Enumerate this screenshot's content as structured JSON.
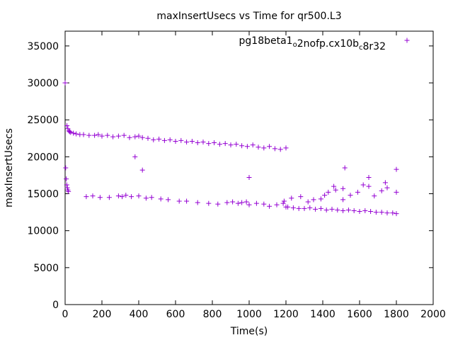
{
  "chart_data": {
    "type": "scatter",
    "title": "maxInsertUsecs vs Time for qr500.L3",
    "xlabel": "Time(s)",
    "ylabel": "maxInsertUsecs",
    "xlim": [
      0,
      2000
    ],
    "ylim": [
      0,
      37000
    ],
    "xticks": [
      "0",
      "200",
      "400",
      "600",
      "800",
      "1000",
      "1200",
      "1400",
      "1600",
      "1800",
      "2000"
    ],
    "yticks": [
      "0",
      "5000",
      "10000",
      "15000",
      "20000",
      "25000",
      "30000",
      "35000"
    ],
    "legend_position": "top-right",
    "grid": false,
    "marker": "+",
    "series": [
      {
        "name_parts": [
          {
            "text": "pg18beta1",
            "sub": false
          },
          {
            "text": "o",
            "sub": true
          },
          {
            "text": "2nofp.cx10b",
            "sub": false
          },
          {
            "text": "c",
            "sub": true
          },
          {
            "text": "8r32",
            "sub": false
          }
        ],
        "color": "#9400d3",
        "x": [
          0,
          10,
          15,
          20,
          25,
          30,
          45,
          60,
          80,
          100,
          130,
          160,
          180,
          200,
          230,
          260,
          290,
          320,
          350,
          380,
          400,
          420,
          450,
          480,
          510,
          540,
          570,
          600,
          630,
          660,
          690,
          720,
          750,
          780,
          810,
          840,
          870,
          900,
          930,
          960,
          990,
          1020,
          1050,
          1080,
          1110,
          1140,
          1170,
          1200,
          3,
          6,
          9,
          12,
          15,
          18,
          115,
          150,
          190,
          240,
          290,
          330,
          360,
          400,
          440,
          470,
          520,
          560,
          620,
          660,
          720,
          780,
          830,
          880,
          910,
          940,
          960,
          985,
          1000,
          1040,
          1080,
          1110,
          1150,
          1185,
          1200,
          1210,
          1240,
          1270,
          1300,
          1330,
          1360,
          1390,
          1420,
          1450,
          1480,
          1510,
          1540,
          1570,
          1600,
          1630,
          1660,
          1690,
          1720,
          1750,
          1780,
          1800,
          1190,
          1230,
          1280,
          1320,
          1350,
          1390,
          1430,
          1460,
          1510,
          1550,
          1590,
          1620,
          1650,
          1680,
          1720,
          1750,
          1800,
          1520,
          1650,
          1740,
          1800,
          1510,
          1470,
          1410,
          1000,
          380,
          420,
          310
        ],
        "y": [
          30000,
          24200,
          23800,
          23500,
          23400,
          23300,
          23200,
          23100,
          23000,
          23000,
          22900,
          22900,
          23000,
          22800,
          22900,
          22700,
          22800,
          22900,
          22600,
          22700,
          22800,
          22600,
          22500,
          22300,
          22400,
          22200,
          22300,
          22100,
          22200,
          22000,
          22100,
          21900,
          22000,
          21800,
          21900,
          21700,
          21800,
          21600,
          21700,
          21500,
          21400,
          21600,
          21300,
          21200,
          21400,
          21100,
          21000,
          21200,
          18500,
          17000,
          16200,
          15800,
          15500,
          15300,
          14600,
          14700,
          14500,
          14500,
          14700,
          14800,
          14600,
          14700,
          14400,
          14500,
          14300,
          14200,
          14000,
          14000,
          13800,
          13700,
          13600,
          13800,
          13900,
          13700,
          13800,
          13900,
          13500,
          13700,
          13600,
          13300,
          13500,
          13700,
          13200,
          13200,
          13100,
          13000,
          13000,
          13100,
          12900,
          13000,
          12800,
          12900,
          12800,
          12700,
          12800,
          12700,
          12600,
          12700,
          12600,
          12500,
          12500,
          12400,
          12400,
          12300,
          14000,
          14400,
          14600,
          13900,
          14200,
          14300,
          15200,
          16000,
          15700,
          14800,
          15200,
          16200,
          16000,
          14700,
          15400,
          15800,
          15200,
          18500,
          17200,
          16500,
          18300,
          14200,
          15500,
          14800,
          17200,
          20000,
          18200,
          14600
        ]
      }
    ]
  }
}
